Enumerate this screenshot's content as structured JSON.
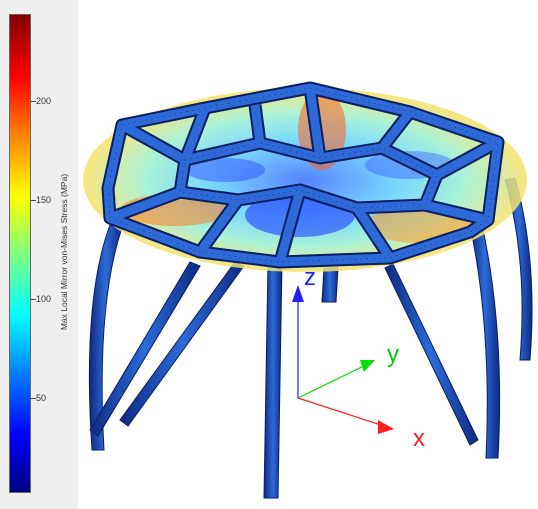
{
  "colorbar": {
    "title": "Max Local Mirror von-Mises Stress (MPa)",
    "ticks": [
      "200",
      "150",
      "100",
      "50"
    ],
    "colors": [
      "#00007f",
      "#0000ff",
      "#00ffff",
      "#ffff00",
      "#ff0000",
      "#7f0000"
    ]
  },
  "axes": {
    "x_label": "x",
    "y_label": "y",
    "z_label": "z",
    "x_color": "#ff2020",
    "y_color": "#00e000",
    "z_color": "#2020ff"
  },
  "structure": {
    "frame_color": "#1f4fb0",
    "mesh_color": "#0a1f60"
  }
}
